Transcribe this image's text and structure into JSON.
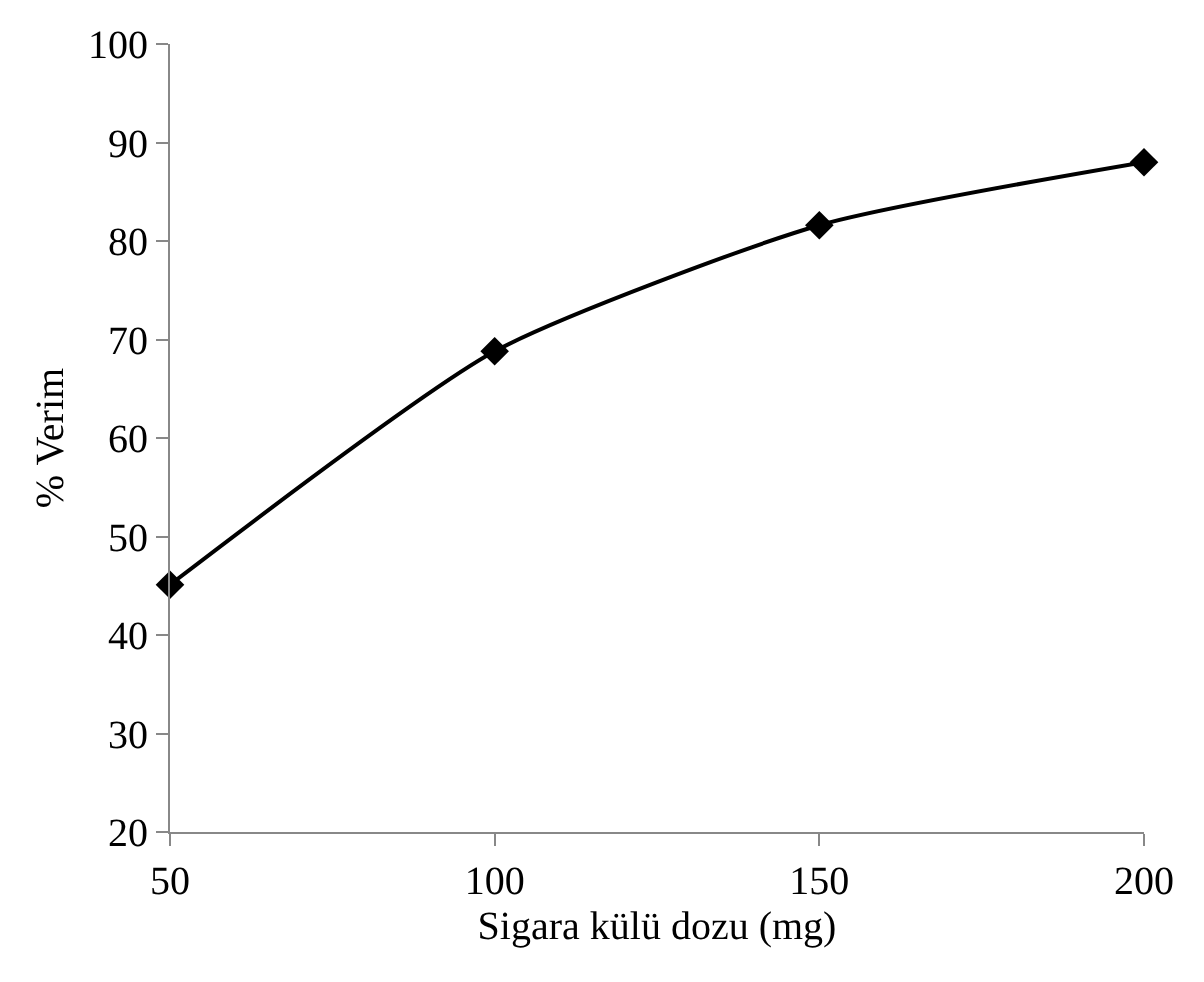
{
  "chart_data": {
    "type": "line",
    "xlabel": "Sigara külü dozu (mg)",
    "ylabel": "% Verim",
    "x": [
      50,
      100,
      150,
      200
    ],
    "series": [
      {
        "color": "#000000",
        "values": [
          45.1,
          68.8,
          81.6,
          88.0
        ]
      }
    ],
    "xlim": [
      50,
      200
    ],
    "xticks": [
      50,
      100,
      150,
      200
    ],
    "ylim": [
      20,
      100
    ],
    "yticks": [
      20,
      30,
      40,
      50,
      60,
      70,
      80,
      90,
      100
    ],
    "legend": false,
    "marker": "diamond",
    "line_style": "solid"
  }
}
